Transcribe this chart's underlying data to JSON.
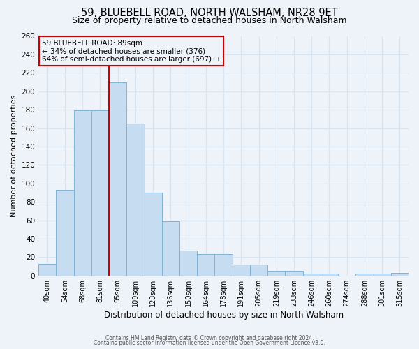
{
  "title1": "59, BLUEBELL ROAD, NORTH WALSHAM, NR28 9ET",
  "title2": "Size of property relative to detached houses in North Walsham",
  "xlabel": "Distribution of detached houses by size in North Walsham",
  "ylabel": "Number of detached properties",
  "footer1": "Contains HM Land Registry data © Crown copyright and database right 2024.",
  "footer2": "Contains public sector information licensed under the Open Government Licence v3.0.",
  "bin_labels": [
    "40sqm",
    "54sqm",
    "68sqm",
    "81sqm",
    "95sqm",
    "109sqm",
    "123sqm",
    "136sqm",
    "150sqm",
    "164sqm",
    "178sqm",
    "191sqm",
    "205sqm",
    "219sqm",
    "233sqm",
    "246sqm",
    "260sqm",
    "274sqm",
    "288sqm",
    "301sqm",
    "315sqm"
  ],
  "bin_values": [
    13,
    93,
    179,
    179,
    210,
    165,
    90,
    59,
    27,
    23,
    23,
    12,
    12,
    5,
    5,
    2,
    2,
    0,
    2,
    2,
    3
  ],
  "bar_color": "#c6dcf0",
  "bar_edge_color": "#7fb3d3",
  "ylim": [
    0,
    260
  ],
  "yticks": [
    0,
    20,
    40,
    60,
    80,
    100,
    120,
    140,
    160,
    180,
    200,
    220,
    240,
    260
  ],
  "marker_label": "59 BLUEBELL ROAD: 89sqm",
  "annotation_line1": "← 34% of detached houses are smaller (376)",
  "annotation_line2": "64% of semi-detached houses are larger (697) →",
  "bg_color": "#eef2f9",
  "grid_color": "#d8e4f0",
  "red_line_color": "#cc0000",
  "box_edge_color": "#cc0000",
  "red_line_index": 4,
  "title1_fontsize": 10.5,
  "title2_fontsize": 9
}
